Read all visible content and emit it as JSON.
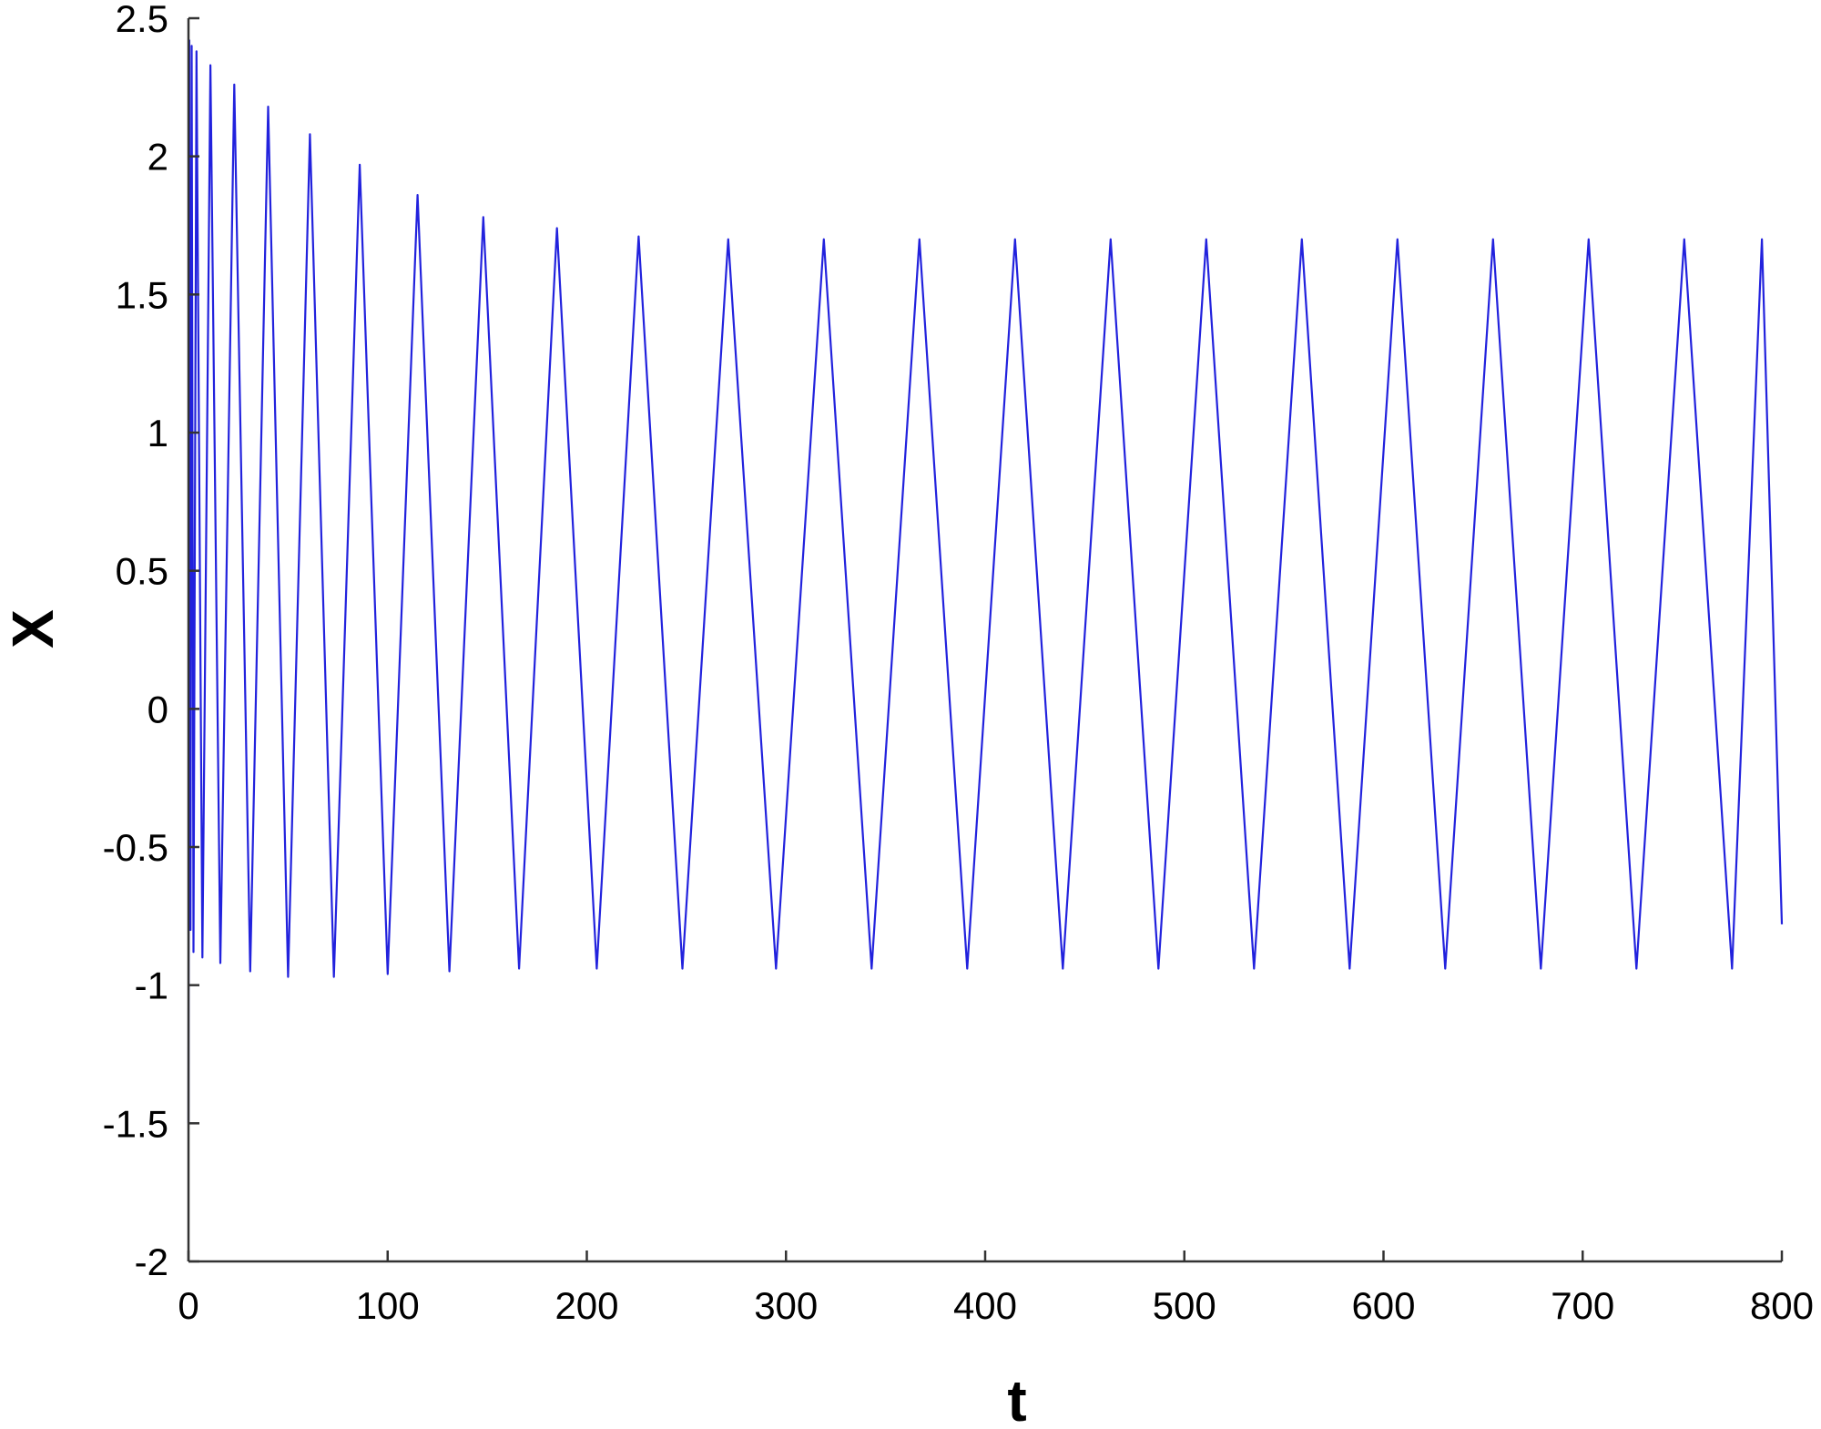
{
  "chart_data": {
    "type": "line",
    "title": "",
    "xlabel": "t",
    "ylabel": "X",
    "xlim": [
      0,
      800
    ],
    "ylim": [
      -2,
      2.5
    ],
    "xticks": [
      0,
      100,
      200,
      300,
      400,
      500,
      600,
      700,
      800
    ],
    "yticks": [
      -2,
      -1.5,
      -1,
      -0.5,
      0,
      0.5,
      1,
      1.5,
      2,
      2.5
    ],
    "xtick_labels": [
      "0",
      "100",
      "200",
      "300",
      "400",
      "500",
      "600",
      "700",
      "800"
    ],
    "ytick_labels": [
      "-2",
      "-1.5",
      "-1",
      "-0.5",
      "0",
      "0.5",
      "1",
      "1.5",
      "2",
      "2.5"
    ],
    "grid": false,
    "legend": "none",
    "line_color": "#2222dd",
    "series": [
      {
        "x": [
          0,
          0.4,
          1.0,
          1.6,
          2.5,
          4.0,
          7.0,
          11.0,
          16.0,
          23.0,
          31.0,
          40.0,
          50.0,
          61.0,
          73.0,
          86.0,
          100.0,
          115.0,
          131.0,
          148.0,
          166.0,
          185.0,
          205.0,
          226.0,
          248.0,
          271.0,
          295.0,
          319.0,
          343.0,
          367.0,
          391.0,
          415.0,
          439.0,
          463.0,
          487.0,
          511.0,
          535.0,
          559.0,
          583.0,
          607.0,
          631.0,
          655.0,
          679.0,
          703.0,
          727.0,
          751.0,
          775.0,
          790.0,
          800.0
        ],
        "y": [
          -1.5,
          2.42,
          -0.8,
          2.4,
          -0.88,
          2.38,
          -0.9,
          2.33,
          -0.92,
          2.26,
          -0.95,
          2.18,
          -0.97,
          2.08,
          -0.97,
          1.97,
          -0.96,
          1.86,
          -0.95,
          1.78,
          -0.94,
          1.74,
          -0.94,
          1.71,
          -0.94,
          1.7,
          -0.94,
          1.7,
          -0.94,
          1.7,
          -0.94,
          1.7,
          -0.94,
          1.7,
          -0.94,
          1.7,
          -0.94,
          1.7,
          -0.94,
          1.7,
          -0.94,
          1.7,
          -0.94,
          1.7,
          -0.94,
          1.7,
          -0.94,
          1.7,
          -0.78
        ]
      }
    ]
  }
}
